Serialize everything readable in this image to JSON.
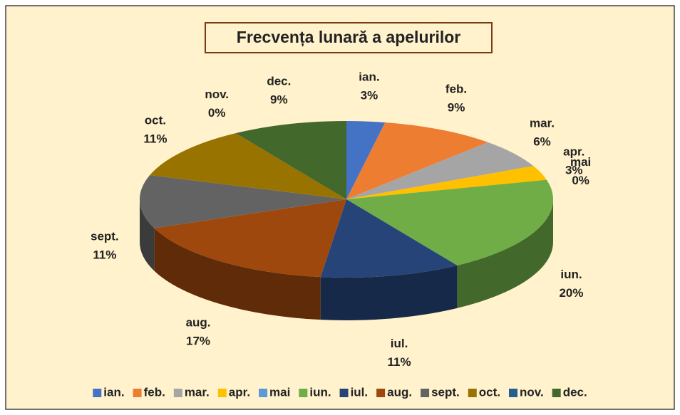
{
  "chart_data": {
    "type": "pie",
    "title": "Frecvența lunară a apelurilor",
    "categories": [
      "ian.",
      "feb.",
      "mar.",
      "apr.",
      "mai",
      "iun.",
      "iul.",
      "aug.",
      "sept.",
      "oct.",
      "nov.",
      "dec."
    ],
    "values": [
      3,
      9,
      6,
      3,
      0,
      20,
      11,
      17,
      11,
      11,
      0,
      9
    ],
    "value_labels": [
      "3%",
      "9%",
      "6%",
      "3%",
      "0%",
      "20%",
      "11%",
      "17%",
      "11%",
      "11%",
      "0%",
      "9%"
    ],
    "colors": [
      "#4472c4",
      "#ed7d31",
      "#a5a5a5",
      "#ffc000",
      "#5b9bd5",
      "#70ad47",
      "#264478",
      "#9e480e",
      "#636363",
      "#997300",
      "#255e91",
      "#43682b"
    ],
    "legend": "bottom"
  }
}
